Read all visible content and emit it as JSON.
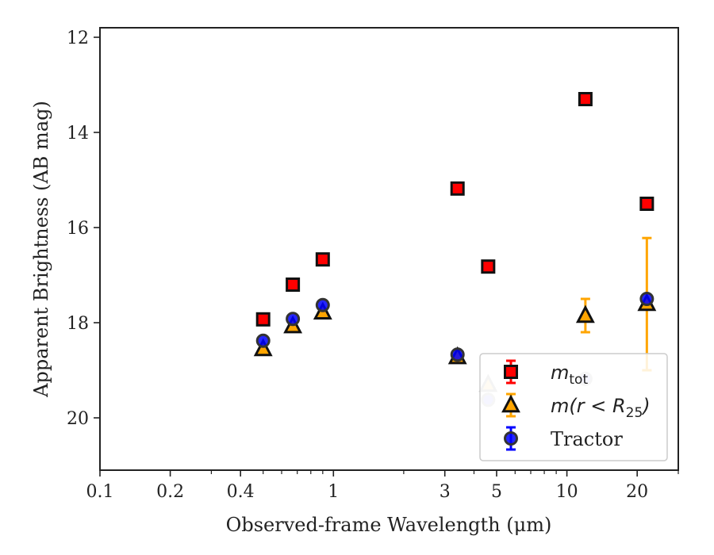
{
  "chart_data": {
    "type": "scatter",
    "title": "",
    "xlabel": "Observed-frame Wavelength (μm)",
    "ylabel": "Apparent Brightness (AB mag)",
    "xscale": "log",
    "xlim": [
      0.1,
      30
    ],
    "ylim": [
      21.1,
      11.8
    ],
    "y_inverted": true,
    "x_ticks": [
      0.1,
      0.2,
      0.4,
      1,
      3,
      5,
      10,
      20
    ],
    "x_tick_labels": [
      "0.1",
      "0.2",
      "0.4",
      "1",
      "3",
      "5",
      "10",
      "20"
    ],
    "y_ticks": [
      12,
      14,
      16,
      18,
      20
    ],
    "y_tick_labels": [
      "12",
      "14",
      "16",
      "18",
      "20"
    ],
    "legend_position": "lower-right",
    "series": [
      {
        "name": "m_tot",
        "legend_label": {
          "main": "m",
          "sub": "tot"
        },
        "marker": "square",
        "color": "#ff0000",
        "edge": "#111111",
        "points": [
          {
            "x": 0.5,
            "y": 17.93
          },
          {
            "x": 0.67,
            "y": 17.2
          },
          {
            "x": 0.9,
            "y": 16.67
          },
          {
            "x": 3.4,
            "y": 15.18
          },
          {
            "x": 4.6,
            "y": 16.82
          },
          {
            "x": 12.0,
            "y": 13.3
          },
          {
            "x": 22.0,
            "y": 15.5
          }
        ]
      },
      {
        "name": "m(r<R25)",
        "legend_label": {
          "main": "m(r < R",
          "sub": "25",
          "tail": ")"
        },
        "marker": "triangle",
        "color": "#ffa500",
        "edge": "#111111",
        "points": [
          {
            "x": 0.5,
            "y": 18.55
          },
          {
            "x": 0.67,
            "y": 18.07
          },
          {
            "x": 0.9,
            "y": 17.78
          },
          {
            "x": 3.4,
            "y": 18.72
          },
          {
            "x": 4.6,
            "y": 19.3,
            "faded": true
          },
          {
            "x": 12.0,
            "y": 17.85,
            "err": [
              17.5,
              18.2
            ]
          },
          {
            "x": 22.0,
            "y": 17.6,
            "err": [
              16.22,
              19.0
            ]
          }
        ]
      },
      {
        "name": "Tractor",
        "legend_label": {
          "main": "Tractor"
        },
        "marker": "circle",
        "color": "#0000ff",
        "edge": "#333333",
        "points": [
          {
            "x": 0.5,
            "y": 18.38
          },
          {
            "x": 0.67,
            "y": 17.92
          },
          {
            "x": 0.9,
            "y": 17.63
          },
          {
            "x": 3.4,
            "y": 18.67
          },
          {
            "x": 4.6,
            "y": 19.62,
            "faded": true
          },
          {
            "x": 12.0,
            "y": 19.18,
            "faded": true
          },
          {
            "x": 22.0,
            "y": 17.5
          }
        ]
      }
    ]
  }
}
